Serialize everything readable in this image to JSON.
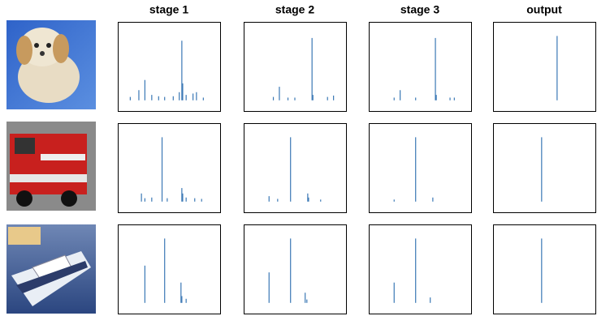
{
  "chart_data": [
    {
      "type": "bar",
      "title": "stage 1",
      "color": "#3a78b5",
      "xlim": [
        0,
        100
      ],
      "ylim": [
        0,
        100
      ],
      "x": [
        5,
        15,
        22,
        30,
        38,
        45,
        55,
        62,
        65,
        66,
        70,
        78,
        82,
        90
      ],
      "values": [
        5,
        15,
        30,
        8,
        6,
        5,
        6,
        12,
        88,
        25,
        8,
        10,
        12,
        4
      ]
    },
    {
      "type": "bar",
      "title": "stage 2",
      "color": "#3a78b5",
      "xlim": [
        0,
        100
      ],
      "ylim": [
        0,
        100
      ],
      "x": [
        25,
        32,
        42,
        50,
        70,
        71,
        88,
        95
      ],
      "values": [
        5,
        20,
        4,
        4,
        92,
        8,
        5,
        7
      ]
    },
    {
      "type": "bar",
      "title": "stage 3",
      "color": "#3a78b5",
      "xlim": [
        0,
        100
      ],
      "ylim": [
        0,
        100
      ],
      "x": [
        20,
        27,
        45,
        68,
        69,
        85,
        90
      ],
      "values": [
        4,
        15,
        4,
        92,
        8,
        4,
        4
      ]
    },
    {
      "type": "bar",
      "title": "output",
      "color": "#3a78b5",
      "xlim": [
        0,
        100
      ],
      "ylim": [
        0,
        100
      ],
      "x": [
        65
      ],
      "values": [
        95
      ]
    },
    {
      "type": "bar",
      "color": "#3a78b5",
      "xlim": [
        0,
        100
      ],
      "ylim": [
        0,
        100
      ],
      "x": [
        18,
        22,
        30,
        42,
        48,
        65,
        66,
        70,
        80,
        88
      ],
      "values": [
        12,
        5,
        6,
        95,
        5,
        20,
        12,
        6,
        5,
        4
      ]
    },
    {
      "type": "bar",
      "color": "#3a78b5",
      "xlim": [
        0,
        100
      ],
      "ylim": [
        0,
        100
      ],
      "x": [
        20,
        30,
        45,
        65,
        66,
        80
      ],
      "values": [
        8,
        4,
        95,
        12,
        6,
        3
      ]
    },
    {
      "type": "bar",
      "color": "#3a78b5",
      "xlim": [
        0,
        100
      ],
      "ylim": [
        0,
        100
      ],
      "x": [
        20,
        45,
        65
      ],
      "values": [
        3,
        95,
        6
      ]
    },
    {
      "type": "bar",
      "color": "#3a78b5",
      "xlim": [
        0,
        100
      ],
      "ylim": [
        0,
        100
      ],
      "x": [
        47
      ],
      "values": [
        95
      ]
    },
    {
      "type": "bar",
      "color": "#3a78b5",
      "xlim": [
        0,
        100
      ],
      "ylim": [
        0,
        100
      ],
      "x": [
        22,
        45,
        64,
        65,
        70
      ],
      "values": [
        55,
        95,
        30,
        10,
        6
      ]
    },
    {
      "type": "bar",
      "color": "#3a78b5",
      "xlim": [
        0,
        100
      ],
      "ylim": [
        0,
        100
      ],
      "x": [
        20,
        45,
        62,
        64
      ],
      "values": [
        45,
        95,
        15,
        5
      ]
    },
    {
      "type": "bar",
      "color": "#3a78b5",
      "xlim": [
        0,
        100
      ],
      "ylim": [
        0,
        100
      ],
      "x": [
        20,
        45,
        62
      ],
      "values": [
        30,
        95,
        8
      ]
    },
    {
      "type": "bar",
      "color": "#3a78b5",
      "xlim": [
        0,
        100
      ],
      "ylim": [
        0,
        100
      ],
      "x": [
        47
      ],
      "values": [
        95
      ]
    }
  ]
}
